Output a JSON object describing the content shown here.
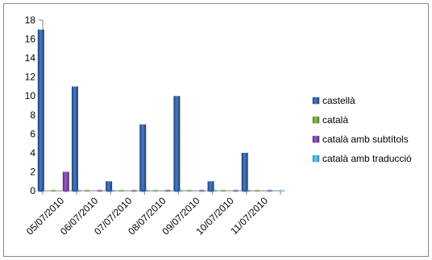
{
  "chart_data": {
    "type": "bar",
    "title": "",
    "xlabel": "",
    "ylabel": "",
    "ylim": [
      0,
      18
    ],
    "ytick_step": 2,
    "grid": false,
    "legend_position": "right",
    "categories": [
      "05/07/2010",
      "06/07/2010",
      "07/07/2010",
      "08/07/2010",
      "09/07/2010",
      "10/07/2010",
      "11/07/2010"
    ],
    "series": [
      {
        "name": "castellà",
        "color": "#2f5fa0",
        "values": [
          17,
          11,
          1,
          7,
          10,
          1,
          4
        ]
      },
      {
        "name": "català",
        "color": "#6fa83c",
        "values": [
          0,
          0,
          0,
          0,
          0,
          0,
          0
        ]
      },
      {
        "name": "català amb subtítols",
        "color": "#7b3fa5",
        "values": [
          2,
          0,
          0,
          0,
          0,
          0,
          0
        ]
      },
      {
        "name": "català amb traducció",
        "color": "#3fb0d0",
        "values": [
          0,
          0,
          0,
          0,
          0,
          0,
          0
        ]
      }
    ]
  }
}
